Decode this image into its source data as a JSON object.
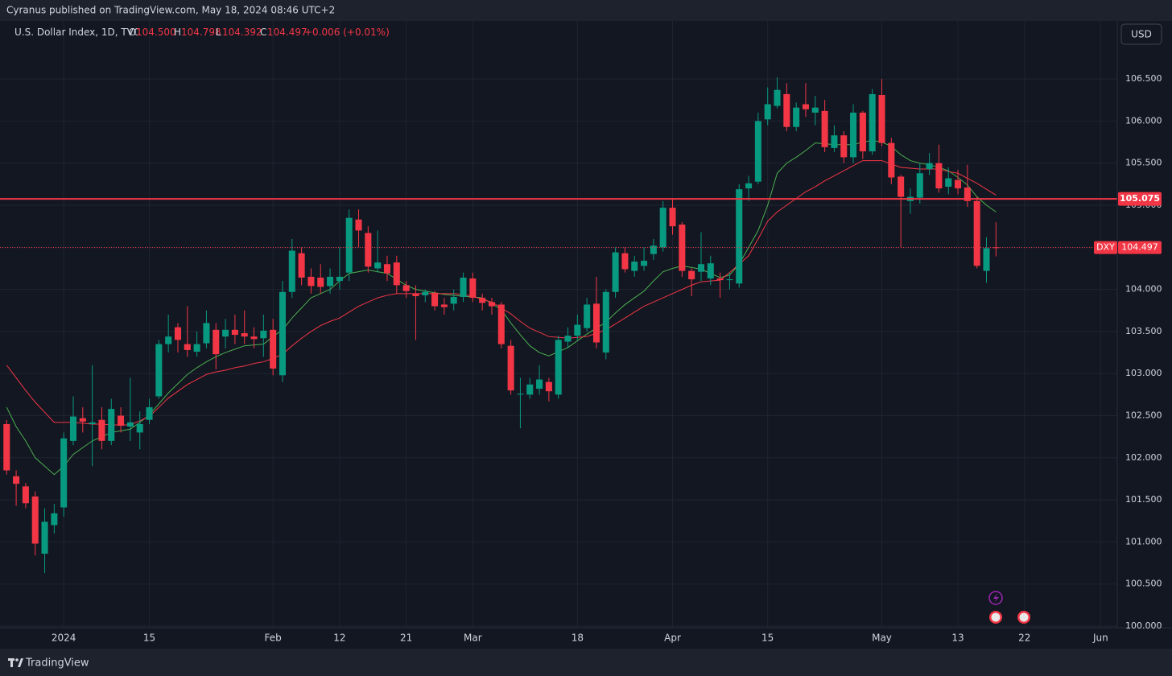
{
  "header": {
    "publisher": "Cyranus published on TradingView.com, May 18, 2024 08:46 UTC+2"
  },
  "legend": {
    "symbol": "U.S. Dollar Index, 1D, TVC",
    "o_label": "O",
    "o": "104.500",
    "h_label": "H",
    "h": "104.798",
    "l_label": "L",
    "l": "104.392",
    "c_label": "C",
    "c": "104.497",
    "change": "+0.006 (+0.01%)"
  },
  "currency": "USD",
  "footer": {
    "brand": "TradingView"
  },
  "chart_data": {
    "type": "candlestick",
    "up_color": "#089981",
    "down_color": "#f23645",
    "open": [
      102.4,
      101.78,
      101.66,
      101.54,
      100.86,
      101.2,
      101.41,
      102.2,
      102.47,
      102.4,
      102.45,
      102.2,
      102.5,
      102.37,
      102.3,
      102.45,
      102.73,
      103.35,
      103.55,
      103.35,
      103.26,
      103.36,
      103.52,
      103.44,
      103.52,
      103.48,
      103.44,
      103.42,
      103.52,
      102.98,
      103.97,
      104.43,
      104.15,
      104.14,
      104.04,
      104.1,
      104.2,
      104.83,
      104.67,
      104.25,
      104.3,
      104.32,
      104.05,
      103.95,
      103.93,
      103.96,
      103.82,
      103.83,
      103.91,
      104.13,
      103.9,
      103.85,
      103.82,
      103.33,
      102.75,
      102.75,
      102.82,
      102.9,
      102.75,
      103.38,
      103.45,
      103.54,
      103.83,
      103.25,
      103.97,
      104.43,
      104.22,
      104.28,
      104.42,
      104.5,
      104.97,
      104.77,
      104.22,
      104.21,
      104.13,
      104.13,
      104.11,
      104.07,
      105.2,
      105.28,
      106.02,
      106.18,
      106.32,
      105.93,
      106.2,
      106.1,
      106.12,
      105.68,
      105.83,
      105.57,
      106.1,
      105.64,
      106.31,
      105.74,
      105.34,
      105.05,
      105.09,
      105.43,
      105.5,
      105.22,
      105.3,
      105.21,
      105.05,
      104.22,
      104.5
    ],
    "high": [
      102.45,
      101.85,
      101.7,
      101.6,
      101.4,
      101.45,
      102.3,
      102.73,
      102.6,
      103.1,
      102.6,
      102.7,
      102.6,
      102.95,
      102.55,
      102.7,
      103.4,
      103.7,
      103.6,
      103.8,
      103.5,
      103.75,
      103.6,
      103.65,
      103.7,
      103.75,
      103.55,
      103.7,
      103.65,
      104.1,
      104.6,
      104.5,
      104.25,
      104.3,
      104.25,
      104.5,
      104.95,
      104.95,
      104.75,
      104.7,
      104.4,
      104.4,
      104.1,
      104.05,
      104.0,
      103.98,
      103.9,
      104.0,
      104.2,
      104.2,
      103.95,
      103.9,
      103.85,
      103.4,
      102.95,
      102.95,
      103.1,
      102.95,
      103.45,
      103.55,
      103.7,
      103.9,
      104.15,
      104.0,
      104.5,
      104.5,
      104.4,
      104.5,
      104.6,
      105.05,
      105.07,
      104.8,
      104.25,
      104.68,
      104.4,
      104.2,
      104.2,
      105.25,
      105.35,
      106.1,
      106.4,
      106.52,
      106.45,
      106.22,
      106.45,
      106.3,
      106.25,
      105.95,
      105.88,
      106.2,
      106.12,
      106.38,
      106.5,
      105.8,
      105.36,
      105.2,
      105.5,
      105.62,
      105.72,
      105.45,
      105.42,
      105.48,
      105.1,
      104.62,
      104.798
    ],
    "low": [
      101.8,
      101.43,
      101.4,
      100.84,
      100.63,
      101.1,
      101.3,
      102.15,
      102.3,
      101.9,
      102.1,
      102.15,
      102.3,
      102.2,
      102.1,
      102.4,
      102.7,
      103.25,
      103.25,
      103.2,
      103.2,
      103.3,
      103.05,
      103.3,
      103.35,
      103.35,
      103.3,
      103.2,
      102.98,
      102.9,
      103.9,
      104.05,
      103.95,
      103.95,
      103.95,
      104.0,
      104.1,
      104.5,
      104.2,
      104.2,
      104.1,
      103.95,
      103.9,
      103.4,
      103.85,
      103.75,
      103.7,
      103.75,
      103.85,
      103.85,
      103.75,
      103.7,
      103.3,
      102.75,
      102.35,
      102.7,
      102.75,
      102.67,
      102.7,
      103.3,
      103.4,
      103.5,
      103.3,
      103.17,
      103.9,
      104.2,
      104.15,
      104.22,
      104.35,
      104.45,
      104.65,
      104.15,
      103.92,
      104.1,
      104.05,
      103.9,
      104.0,
      104.02,
      105.05,
      105.25,
      105.95,
      106.15,
      105.88,
      105.88,
      106.05,
      105.95,
      105.63,
      105.63,
      105.5,
      105.5,
      105.55,
      105.6,
      105.7,
      105.25,
      104.5,
      104.9,
      105.02,
      105.36,
      105.15,
      105.13,
      105.13,
      104.98,
      104.25,
      104.08,
      104.392
    ],
    "close": [
      101.85,
      101.69,
      101.46,
      100.98,
      101.24,
      101.34,
      102.23,
      102.49,
      102.43,
      102.42,
      102.2,
      102.58,
      102.38,
      102.42,
      102.4,
      102.6,
      103.35,
      103.44,
      103.4,
      103.28,
      103.35,
      103.6,
      103.23,
      103.52,
      103.46,
      103.44,
      103.41,
      103.51,
      103.06,
      103.97,
      104.46,
      104.14,
      104.04,
      104.03,
      104.15,
      104.15,
      104.85,
      104.7,
      104.27,
      104.32,
      104.19,
      104.05,
      103.98,
      103.92,
      103.97,
      103.8,
      103.79,
      103.91,
      104.14,
      103.9,
      103.84,
      103.8,
      103.35,
      102.8,
      102.76,
      102.87,
      102.93,
      102.79,
      103.4,
      103.45,
      103.58,
      103.82,
      103.37,
      103.97,
      104.44,
      104.24,
      104.33,
      104.34,
      104.52,
      104.97,
      104.75,
      104.22,
      104.12,
      104.3,
      104.31,
      104.11,
      104.12,
      105.19,
      105.26,
      106.0,
      106.2,
      106.37,
      105.93,
      106.16,
      106.14,
      106.16,
      105.69,
      105.83,
      105.57,
      106.1,
      105.64,
      106.32,
      105.74,
      105.33,
      105.1,
      105.1,
      105.38,
      105.5,
      105.2,
      105.32,
      105.2,
      105.05,
      104.28,
      104.49,
      104.497
    ],
    "lines": [
      {
        "color": "#4caf50",
        "values": [
          102.6,
          102.37,
          102.2,
          102.0,
          101.9,
          101.8,
          101.9,
          102.04,
          102.12,
          102.2,
          102.25,
          102.3,
          102.32,
          102.34,
          102.42,
          102.51,
          102.64,
          102.77,
          102.88,
          102.99,
          103.07,
          103.14,
          103.2,
          103.25,
          103.29,
          103.33,
          103.34,
          103.35,
          103.44,
          103.52,
          103.66,
          103.78,
          103.9,
          103.95,
          104.0,
          104.1,
          104.19,
          104.21,
          104.23,
          104.21,
          104.19,
          104.12,
          104.05,
          104.0,
          103.98,
          103.96,
          103.94,
          103.93,
          103.92,
          103.91,
          103.9,
          103.83,
          103.76,
          103.6,
          103.46,
          103.33,
          103.25,
          103.21,
          103.26,
          103.31,
          103.39,
          103.47,
          103.54,
          103.61,
          103.72,
          103.82,
          103.9,
          103.98,
          104.1,
          104.21,
          104.25,
          104.28,
          104.26,
          104.24,
          104.19,
          104.14,
          104.17,
          104.3,
          104.5,
          104.7,
          105.0,
          105.38,
          105.5,
          105.57,
          105.65,
          105.74,
          105.73,
          105.72,
          105.72,
          105.72,
          105.75,
          105.77,
          105.75,
          105.7,
          105.6,
          105.53,
          105.5,
          105.48,
          105.45,
          105.41,
          105.33,
          105.24,
          105.1,
          105.0,
          104.92
        ]
      },
      {
        "color": "#f23645",
        "values": [
          103.1,
          102.95,
          102.8,
          102.66,
          102.54,
          102.42,
          102.42,
          102.42,
          102.41,
          102.4,
          102.4,
          102.39,
          102.39,
          102.39,
          102.44,
          102.49,
          102.6,
          102.71,
          102.79,
          102.87,
          102.93,
          102.99,
          103.02,
          103.04,
          103.07,
          103.09,
          103.12,
          103.14,
          103.18,
          103.23,
          103.33,
          103.42,
          103.5,
          103.57,
          103.62,
          103.66,
          103.73,
          103.8,
          103.85,
          103.9,
          103.93,
          103.95,
          103.95,
          103.95,
          103.95,
          103.95,
          103.95,
          103.95,
          103.94,
          103.92,
          103.88,
          103.85,
          103.78,
          103.71,
          103.62,
          103.54,
          103.49,
          103.44,
          103.43,
          103.42,
          103.43,
          103.44,
          103.48,
          103.52,
          103.59,
          103.66,
          103.73,
          103.8,
          103.85,
          103.9,
          103.95,
          104.0,
          104.05,
          104.09,
          104.1,
          104.11,
          104.2,
          104.3,
          104.4,
          104.6,
          104.81,
          104.92,
          105.0,
          105.08,
          105.16,
          105.22,
          105.29,
          105.35,
          105.41,
          105.47,
          105.53,
          105.53,
          105.53,
          105.49,
          105.45,
          105.44,
          105.43,
          105.43,
          105.43,
          105.4,
          105.38,
          105.32,
          105.26,
          105.19,
          105.12
        ]
      }
    ],
    "xlim": [
      -0.7,
      116.75
    ],
    "xticks": [
      {
        "value": 6,
        "label": "2024"
      },
      {
        "value": 15,
        "label": "15"
      },
      {
        "value": 28,
        "label": "Feb"
      },
      {
        "value": 35,
        "label": "12"
      },
      {
        "value": 42,
        "label": "21"
      },
      {
        "value": 49,
        "label": "Mar"
      },
      {
        "value": 60,
        "label": "18"
      },
      {
        "value": 70,
        "label": "Apr"
      },
      {
        "value": 80,
        "label": "15"
      },
      {
        "value": 92,
        "label": "May"
      },
      {
        "value": 100,
        "label": "13"
      },
      {
        "value": 107,
        "label": "22"
      },
      {
        "value": 115,
        "label": "Jun"
      }
    ],
    "ylim": [
      100,
      107.18
    ],
    "yticks": [
      {
        "value": 100,
        "label": "100.000"
      },
      {
        "value": 100.5,
        "label": "100.500"
      },
      {
        "value": 101,
        "label": "101.000"
      },
      {
        "value": 101.5,
        "label": "101.500"
      },
      {
        "value": 102,
        "label": "102.000"
      },
      {
        "value": 102.5,
        "label": "102.500"
      },
      {
        "value": 103,
        "label": "103.000"
      },
      {
        "value": 103.5,
        "label": "103.500"
      },
      {
        "value": 104,
        "label": "104.000"
      },
      {
        "value": 104.5,
        "label": "104.500"
      },
      {
        "value": 105,
        "label": "105.000"
      },
      {
        "value": 105.5,
        "label": "105.500"
      },
      {
        "value": 106,
        "label": "106.000"
      },
      {
        "value": 106.5,
        "label": "106.500"
      }
    ],
    "grid": true,
    "hline": {
      "value": 105.075,
      "color": "#f23645"
    },
    "last_price": {
      "value": 104.497,
      "symbol": "DXY",
      "color": "#f23645"
    }
  }
}
